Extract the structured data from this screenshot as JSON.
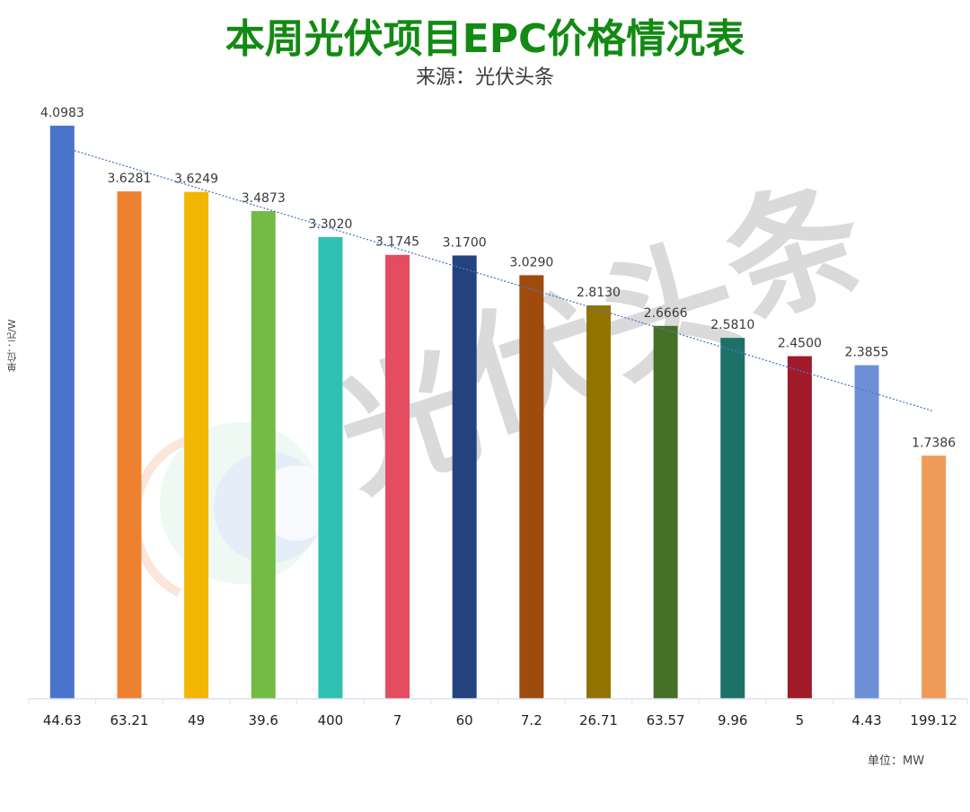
{
  "header": {
    "title": "本周光伏项目EPC价格情况表",
    "subtitle": "来源：光伏头条"
  },
  "axes": {
    "y_unit_label": "单位：元/W",
    "x_unit_label": "单位：MW"
  },
  "watermark": {
    "text": "光伏头条"
  },
  "colors": {
    "title": "#138a13",
    "trendline": "#4a78c8",
    "axis": "#d9e1f2"
  },
  "chart_data": {
    "type": "bar",
    "title": "本周光伏项目EPC价格情况表",
    "subtitle": "来源：光伏头条",
    "xlabel": "单位：MW",
    "ylabel": "单位：元/W",
    "categories": [
      "44.63",
      "63.21",
      "49",
      "39.6",
      "400",
      "7",
      "60",
      "7.2",
      "26.71",
      "63.57",
      "9.96",
      "5",
      "4.43",
      "199.12"
    ],
    "values": [
      4.0983,
      3.6281,
      3.6249,
      3.4873,
      3.302,
      3.1745,
      3.17,
      3.029,
      2.813,
      2.6666,
      2.581,
      2.45,
      2.3855,
      1.7386
    ],
    "value_labels": [
      "4.0983",
      "3.6281",
      "3.6249",
      "3.4873",
      "3.3020",
      "3.1745",
      "3.1700",
      "3.0290",
      "2.8130",
      "2.6666",
      "2.5810",
      "2.4500",
      "2.3855",
      "1.7386"
    ],
    "bar_colors": [
      "#4a74cb",
      "#ee8130",
      "#f2b705",
      "#74bb45",
      "#2fc2b3",
      "#e44c5f",
      "#24427e",
      "#a04b0e",
      "#937300",
      "#466f27",
      "#1d7167",
      "#a01a2a",
      "#6d8fd6",
      "#f09a58"
    ],
    "trendline": {
      "type": "linear",
      "style": "dotted",
      "start_value": 3.92,
      "end_value": 2.06
    },
    "ylim": [
      0,
      4.1
    ],
    "grid": false,
    "legend": "none"
  }
}
